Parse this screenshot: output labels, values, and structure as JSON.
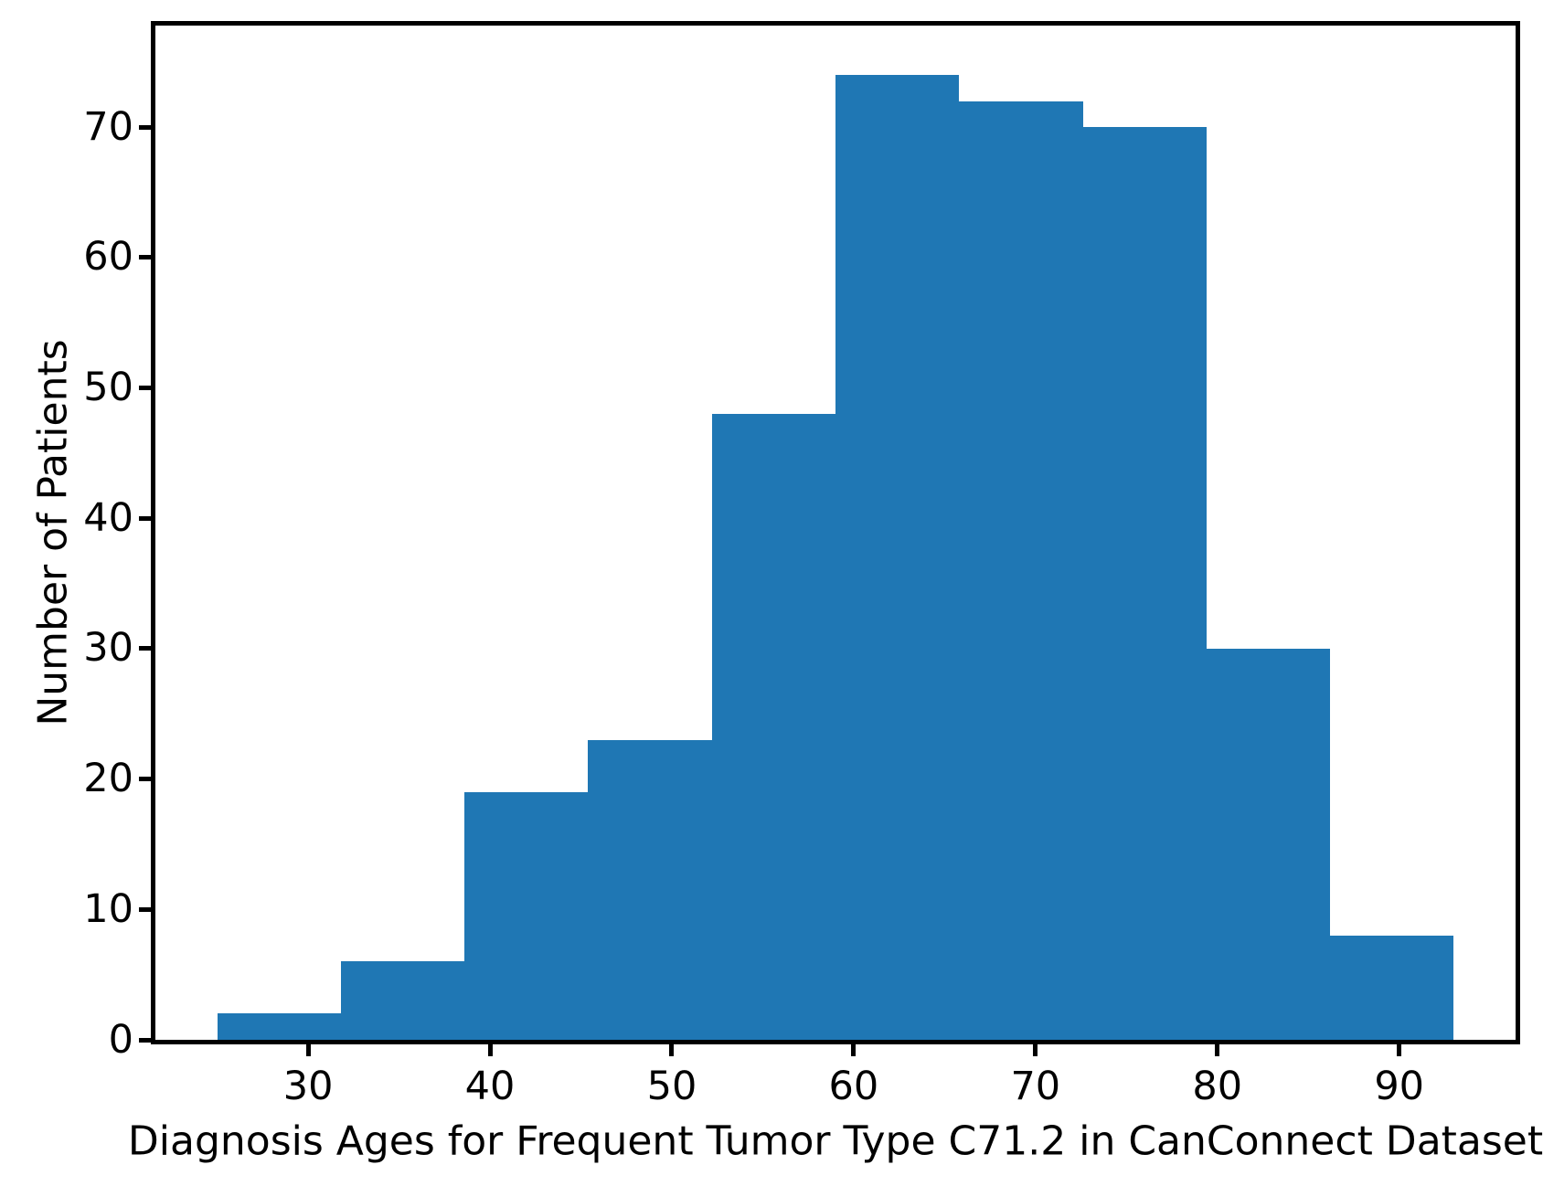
{
  "chart_data": {
    "type": "bar",
    "subtype": "histogram",
    "title": "",
    "xlabel": "Diagnosis Ages for Frequent Tumor Type C71.2 in CanConnect Dataset",
    "ylabel": "Number of Patients",
    "bin_edges": [
      25,
      31.8,
      38.6,
      45.4,
      52.2,
      59,
      65.8,
      72.6,
      79.4,
      86.2,
      93
    ],
    "counts": [
      2,
      6,
      19,
      23,
      48,
      74,
      72,
      70,
      30,
      8
    ],
    "x_ticks": [
      30,
      40,
      50,
      60,
      70,
      80,
      90
    ],
    "y_ticks": [
      0,
      10,
      20,
      30,
      40,
      50,
      60,
      70
    ],
    "xlim": [
      21.6,
      96.4
    ],
    "ylim": [
      0,
      77.8
    ],
    "bar_color": "#1f77b4",
    "spine_color": "#000000",
    "background_color": "#ffffff",
    "grid": false,
    "legend": null
  }
}
